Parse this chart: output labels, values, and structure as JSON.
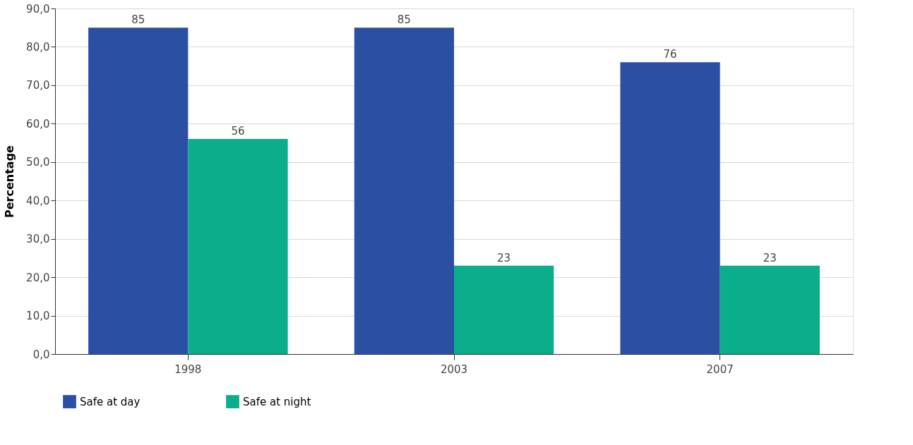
{
  "chart_data": {
    "type": "bar",
    "ylabel": "Percentage",
    "categories": [
      "1998",
      "2003",
      "2007"
    ],
    "series": [
      {
        "name": "Safe at day",
        "color": "#2a4fa3",
        "values": [
          85,
          85,
          76
        ]
      },
      {
        "name": "Safe at night",
        "color": "#0aae8a",
        "values": [
          56,
          23,
          23
        ]
      }
    ],
    "ylim": [
      0,
      90
    ],
    "yticks": [
      {
        "value": 0,
        "label": "0,0"
      },
      {
        "value": 10,
        "label": "10,0"
      },
      {
        "value": 20,
        "label": "20,0"
      },
      {
        "value": 30,
        "label": "30,0"
      },
      {
        "value": 40,
        "label": "40,0"
      },
      {
        "value": 50,
        "label": "50,0"
      },
      {
        "value": 60,
        "label": "60,0"
      },
      {
        "value": 70,
        "label": "70,0"
      },
      {
        "value": 80,
        "label": "80,0"
      },
      {
        "value": 90,
        "label": "90,0"
      }
    ],
    "grid": "y",
    "legend": "bottom",
    "data_labels": true
  }
}
